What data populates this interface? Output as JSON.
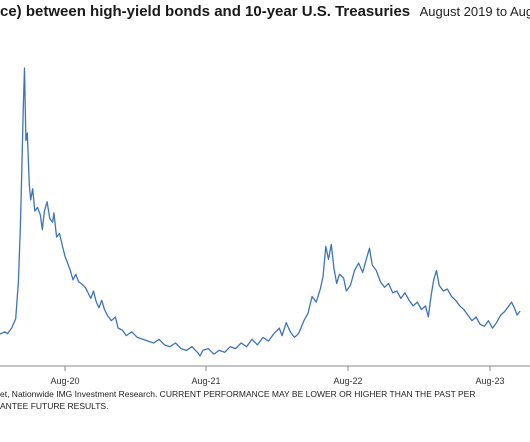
{
  "title": {
    "main": "ce) between high-yield bonds and 10-year U.S. Treasuries",
    "range": "August 2019 to Aug"
  },
  "source": {
    "line1": "et, Nationwide IMG Investment Research. CURRENT PERFORMANCE MAY BE LOWER OR HIGHER THAN THE PAST PER",
    "line2": "ANTEE FUTURE RESULTS."
  },
  "chart_data": {
    "type": "line",
    "xlabel": "",
    "ylabel": "",
    "grid": false,
    "line_color": "#3e74b8",
    "x_ticks": [
      "Aug-20",
      "Aug-21",
      "Aug-22",
      "Aug-23"
    ],
    "series": [
      {
        "values": [
          [
            2020.02,
            3.55
          ],
          [
            2020.04,
            3.6
          ],
          [
            2020.07,
            3.65
          ],
          [
            2020.09,
            3.6
          ],
          [
            2020.12,
            3.75
          ],
          [
            2020.15,
            4.0
          ],
          [
            2020.17,
            5.0
          ],
          [
            2020.185,
            6.5
          ],
          [
            2020.195,
            8.0
          ],
          [
            2020.205,
            9.6
          ],
          [
            2020.215,
            10.75
          ],
          [
            2020.225,
            8.8
          ],
          [
            2020.235,
            9.0
          ],
          [
            2020.25,
            7.6
          ],
          [
            2020.26,
            7.2
          ],
          [
            2020.275,
            7.5
          ],
          [
            2020.29,
            6.9
          ],
          [
            2020.31,
            7.0
          ],
          [
            2020.33,
            6.8
          ],
          [
            2020.345,
            6.4
          ],
          [
            2020.36,
            6.9
          ],
          [
            2020.38,
            7.15
          ],
          [
            2020.4,
            6.7
          ],
          [
            2020.42,
            6.6
          ],
          [
            2020.43,
            6.85
          ],
          [
            2020.45,
            6.2
          ],
          [
            2020.47,
            6.3
          ],
          [
            2020.49,
            6.0
          ],
          [
            2020.51,
            5.7
          ],
          [
            2020.53,
            5.5
          ],
          [
            2020.55,
            5.3
          ],
          [
            2020.57,
            5.05
          ],
          [
            2020.59,
            5.2
          ],
          [
            2020.61,
            5.0
          ],
          [
            2020.63,
            4.95
          ],
          [
            2020.66,
            4.85
          ],
          [
            2020.68,
            4.7
          ],
          [
            2020.7,
            4.55
          ],
          [
            2020.72,
            4.75
          ],
          [
            2020.74,
            4.45
          ],
          [
            2020.76,
            4.3
          ],
          [
            2020.78,
            4.5
          ],
          [
            2020.8,
            4.25
          ],
          [
            2020.82,
            4.1
          ],
          [
            2020.85,
            3.95
          ],
          [
            2020.88,
            4.05
          ],
          [
            2020.9,
            3.75
          ],
          [
            2020.93,
            3.7
          ],
          [
            2020.96,
            3.55
          ],
          [
            2021.0,
            3.65
          ],
          [
            2021.04,
            3.5
          ],
          [
            2021.08,
            3.45
          ],
          [
            2021.12,
            3.4
          ],
          [
            2021.16,
            3.35
          ],
          [
            2021.2,
            3.45
          ],
          [
            2021.24,
            3.3
          ],
          [
            2021.28,
            3.25
          ],
          [
            2021.32,
            3.35
          ],
          [
            2021.36,
            3.2
          ],
          [
            2021.4,
            3.15
          ],
          [
            2021.44,
            3.25
          ],
          [
            2021.48,
            3.1
          ],
          [
            2021.5,
            3.0
          ],
          [
            2021.52,
            3.15
          ],
          [
            2021.56,
            3.2
          ],
          [
            2021.6,
            3.05
          ],
          [
            2021.64,
            3.15
          ],
          [
            2021.68,
            3.1
          ],
          [
            2021.72,
            3.25
          ],
          [
            2021.76,
            3.2
          ],
          [
            2021.8,
            3.35
          ],
          [
            2021.84,
            3.25
          ],
          [
            2021.88,
            3.45
          ],
          [
            2021.92,
            3.3
          ],
          [
            2021.96,
            3.5
          ],
          [
            2022.0,
            3.4
          ],
          [
            2022.04,
            3.6
          ],
          [
            2022.08,
            3.75
          ],
          [
            2022.1,
            3.55
          ],
          [
            2022.13,
            3.9
          ],
          [
            2022.16,
            3.65
          ],
          [
            2022.19,
            3.5
          ],
          [
            2022.22,
            3.6
          ],
          [
            2022.26,
            3.95
          ],
          [
            2022.29,
            4.15
          ],
          [
            2022.32,
            4.6
          ],
          [
            2022.35,
            4.45
          ],
          [
            2022.38,
            4.8
          ],
          [
            2022.4,
            5.15
          ],
          [
            2022.42,
            5.95
          ],
          [
            2022.44,
            5.6
          ],
          [
            2022.46,
            6.0
          ],
          [
            2022.48,
            5.35
          ],
          [
            2022.5,
            4.95
          ],
          [
            2022.52,
            5.2
          ],
          [
            2022.55,
            5.1
          ],
          [
            2022.57,
            4.75
          ],
          [
            2022.6,
            4.9
          ],
          [
            2022.63,
            5.3
          ],
          [
            2022.66,
            5.5
          ],
          [
            2022.69,
            5.25
          ],
          [
            2022.72,
            5.65
          ],
          [
            2022.74,
            5.9
          ],
          [
            2022.76,
            5.45
          ],
          [
            2022.79,
            5.3
          ],
          [
            2022.82,
            5.0
          ],
          [
            2022.85,
            4.85
          ],
          [
            2022.88,
            4.95
          ],
          [
            2022.91,
            4.7
          ],
          [
            2022.94,
            4.75
          ],
          [
            2022.97,
            4.55
          ],
          [
            2023.0,
            4.7
          ],
          [
            2023.03,
            4.5
          ],
          [
            2023.06,
            4.35
          ],
          [
            2023.09,
            4.45
          ],
          [
            2023.12,
            4.25
          ],
          [
            2023.15,
            4.35
          ],
          [
            2023.17,
            4.05
          ],
          [
            2023.19,
            4.6
          ],
          [
            2023.21,
            5.05
          ],
          [
            2023.23,
            5.3
          ],
          [
            2023.25,
            4.9
          ],
          [
            2023.28,
            4.75
          ],
          [
            2023.31,
            4.8
          ],
          [
            2023.34,
            4.6
          ],
          [
            2023.37,
            4.5
          ],
          [
            2023.4,
            4.35
          ],
          [
            2023.43,
            4.25
          ],
          [
            2023.46,
            4.1
          ],
          [
            2023.49,
            3.95
          ],
          [
            2023.52,
            4.05
          ],
          [
            2023.55,
            3.85
          ],
          [
            2023.58,
            3.8
          ],
          [
            2023.61,
            3.95
          ],
          [
            2023.64,
            3.75
          ],
          [
            2023.67,
            3.9
          ],
          [
            2023.7,
            4.1
          ],
          [
            2023.73,
            4.2
          ],
          [
            2023.76,
            4.35
          ],
          [
            2023.78,
            4.45
          ],
          [
            2023.8,
            4.3
          ],
          [
            2023.82,
            4.1
          ],
          [
            2023.84,
            4.2
          ]
        ]
      }
    ]
  }
}
